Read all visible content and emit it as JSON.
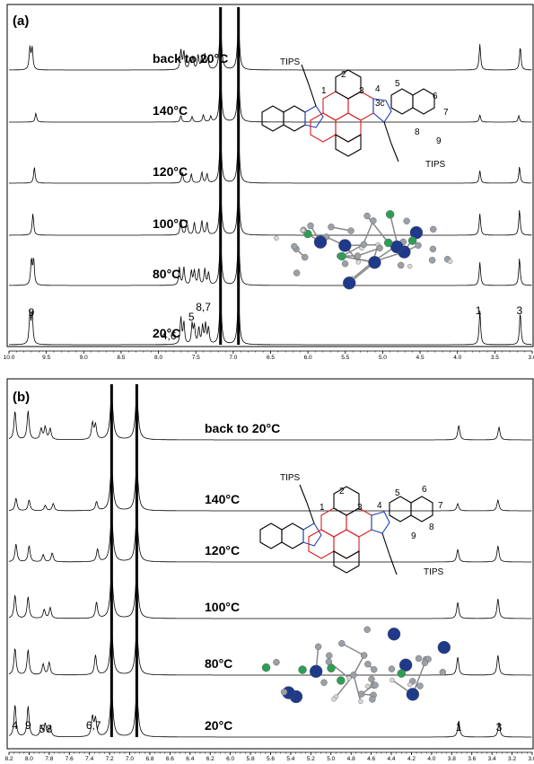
{
  "chart_data": [
    {
      "type": "line",
      "panel_label": "(a)",
      "xlim": [
        10.0,
        3.0
      ],
      "x_reversed": true,
      "x_ticks": [
        "10.0",
        "9.5",
        "9.0",
        "8.5",
        "8.0",
        "7.5",
        "7.0",
        "6.5",
        "6.0",
        "5.5",
        "5.0",
        "4.5",
        "4.0",
        "3.5",
        "3.0"
      ],
      "grid": false,
      "series": [
        {
          "name": "back to 20°C",
          "peaks": [
            [
              9.72,
              0.6
            ],
            [
              9.69,
              0.6
            ],
            [
              7.7,
              0.55
            ],
            [
              7.66,
              0.5
            ],
            [
              7.58,
              0.3
            ],
            [
              7.54,
              0.35
            ],
            [
              7.47,
              0.4
            ],
            [
              7.42,
              0.35
            ],
            [
              7.38,
              0.4
            ],
            [
              7.34,
              0.3
            ],
            [
              3.7,
              0.72
            ],
            [
              3.16,
              0.65
            ]
          ]
        },
        {
          "name": "140°C",
          "peaks": [
            [
              9.64,
              0.25
            ],
            [
              7.7,
              0.18
            ],
            [
              7.55,
              0.15
            ],
            [
              7.4,
              0.2
            ],
            [
              7.3,
              0.15
            ],
            [
              3.7,
              0.2
            ],
            [
              3.18,
              0.18
            ]
          ]
        },
        {
          "name": "120°C",
          "peaks": [
            [
              9.66,
              0.45
            ],
            [
              7.68,
              0.3
            ],
            [
              7.56,
              0.25
            ],
            [
              7.42,
              0.3
            ],
            [
              7.35,
              0.25
            ],
            [
              3.7,
              0.35
            ],
            [
              3.17,
              0.45
            ]
          ]
        },
        {
          "name": "100°C",
          "peaks": [
            [
              9.68,
              0.6
            ],
            [
              7.7,
              0.45
            ],
            [
              7.62,
              0.4
            ],
            [
              7.52,
              0.35
            ],
            [
              7.42,
              0.4
            ],
            [
              7.35,
              0.35
            ],
            [
              3.7,
              0.6
            ],
            [
              3.17,
              0.7
            ]
          ]
        },
        {
          "name": "80°C",
          "peaks": [
            [
              9.7,
              0.7
            ],
            [
              9.67,
              0.7
            ],
            [
              7.72,
              0.5
            ],
            [
              7.66,
              0.5
            ],
            [
              7.56,
              0.4
            ],
            [
              7.52,
              0.4
            ],
            [
              7.46,
              0.45
            ],
            [
              7.38,
              0.45
            ],
            [
              7.33,
              0.35
            ],
            [
              3.7,
              0.65
            ],
            [
              3.17,
              0.75
            ]
          ]
        },
        {
          "name": "20°C",
          "peaks": [
            [
              9.72,
              0.85
            ],
            [
              9.69,
              0.85
            ],
            [
              7.7,
              0.75
            ],
            [
              7.66,
              0.6
            ],
            [
              7.55,
              0.55
            ],
            [
              7.52,
              0.5
            ],
            [
              7.46,
              0.45
            ],
            [
              7.41,
              0.5
            ],
            [
              7.37,
              0.55
            ],
            [
              7.33,
              0.45
            ],
            [
              3.7,
              0.95
            ],
            [
              3.16,
              0.9
            ]
          ]
        }
      ],
      "solvent_peaks": [
        7.17,
        6.93
      ],
      "annotations": [
        {
          "text": "9",
          "x": 9.7
        },
        {
          "text": "4,6",
          "x": 7.86
        },
        {
          "text": "5",
          "x": 7.56
        },
        {
          "text": "8,7",
          "x": 7.4
        },
        {
          "text": "1",
          "x": 3.72
        },
        {
          "text": "3",
          "x": 3.17
        }
      ],
      "structure_labels": [
        "TIPS",
        "1",
        "2",
        "3",
        "4",
        "5",
        "3c",
        "6",
        "7",
        "8",
        "9",
        "TIPS"
      ]
    },
    {
      "type": "line",
      "panel_label": "(b)",
      "xlim": [
        8.2,
        3.0
      ],
      "x_reversed": true,
      "x_ticks": [
        "8.2",
        "8.0",
        "7.8",
        "7.6",
        "7.4",
        "7.2",
        "7.0",
        "6.8",
        "6.6",
        "6.4",
        "6.2",
        "6.0",
        "5.8",
        "5.6",
        "5.4",
        "5.2",
        "5.0",
        "4.8",
        "4.6",
        "4.4",
        "4.2",
        "4.0",
        "3.8",
        "3.6",
        "3.4",
        "3.2",
        "3.0"
      ],
      "grid": false,
      "series": [
        {
          "name": "back to 20°C",
          "peaks": [
            [
              8.14,
              0.8
            ],
            [
              8.01,
              0.8
            ],
            [
              7.88,
              0.3
            ],
            [
              7.84,
              0.35
            ],
            [
              7.79,
              0.3
            ],
            [
              7.37,
              0.45
            ],
            [
              7.34,
              0.4
            ],
            [
              3.73,
              0.4
            ],
            [
              3.33,
              0.35
            ]
          ]
        },
        {
          "name": "140°C",
          "peaks": [
            [
              8.13,
              0.35
            ],
            [
              8.0,
              0.3
            ],
            [
              7.84,
              0.15
            ],
            [
              7.76,
              0.2
            ],
            [
              7.33,
              0.25
            ],
            [
              3.74,
              0.2
            ],
            [
              3.34,
              0.3
            ]
          ]
        },
        {
          "name": "120°C",
          "peaks": [
            [
              8.13,
              0.5
            ],
            [
              8.0,
              0.45
            ],
            [
              7.86,
              0.2
            ],
            [
              7.77,
              0.25
            ],
            [
              7.32,
              0.35
            ],
            [
              3.74,
              0.35
            ],
            [
              3.34,
              0.45
            ]
          ]
        },
        {
          "name": "100°C",
          "peaks": [
            [
              8.14,
              0.65
            ],
            [
              8.01,
              0.6
            ],
            [
              7.85,
              0.25
            ],
            [
              7.79,
              0.3
            ],
            [
              7.33,
              0.45
            ],
            [
              3.74,
              0.45
            ],
            [
              3.34,
              0.55
            ]
          ]
        },
        {
          "name": "80°C",
          "peaks": [
            [
              8.14,
              0.75
            ],
            [
              8.01,
              0.7
            ],
            [
              7.86,
              0.3
            ],
            [
              7.8,
              0.35
            ],
            [
              7.34,
              0.55
            ],
            [
              3.74,
              0.5
            ],
            [
              3.34,
              0.55
            ]
          ]
        },
        {
          "name": "20°C",
          "peaks": [
            [
              8.14,
              0.9
            ],
            [
              8.01,
              0.85
            ],
            [
              7.88,
              0.3
            ],
            [
              7.84,
              0.35
            ],
            [
              7.79,
              0.3
            ],
            [
              7.37,
              0.55
            ],
            [
              7.34,
              0.5
            ],
            [
              3.73,
              0.45
            ],
            [
              3.33,
              0.4
            ]
          ]
        }
      ],
      "solvent_peaks": [
        7.18,
        6.93
      ],
      "annotations": [
        {
          "text": "4",
          "x": 8.14
        },
        {
          "text": "9",
          "x": 8.01
        },
        {
          "text": "5",
          "x": 7.87
        },
        {
          "text": "8",
          "x": 7.8
        },
        {
          "text": "6,7",
          "x": 7.36
        },
        {
          "text": "1",
          "x": 3.73
        },
        {
          "text": "3",
          "x": 3.33
        }
      ],
      "structure_labels": [
        "TIPS",
        "1",
        "2",
        "3",
        "4",
        "5",
        "6",
        "7",
        "8",
        "9",
        "TIPS"
      ]
    }
  ]
}
